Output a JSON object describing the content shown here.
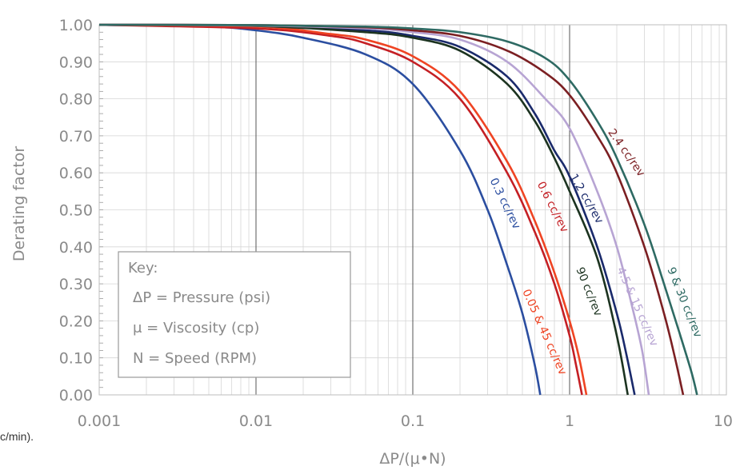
{
  "chart_data": {
    "type": "line",
    "x_scale": "log",
    "xlim": [
      0.001,
      10
    ],
    "ylim": [
      0,
      1.0
    ],
    "xlabel": "ΔP/(μ•N)",
    "ylabel": "Derating factor",
    "x_ticks": [
      "0.001",
      "0.01",
      "0.1",
      "1",
      "10"
    ],
    "y_ticks": [
      "0.00",
      "0.10",
      "0.20",
      "0.30",
      "0.40",
      "0.50",
      "0.60",
      "0.70",
      "0.80",
      "0.90",
      "1.00"
    ],
    "grid": true,
    "legend_box": {
      "title": "Key:",
      "lines": [
        "ΔP = Pressure (psi)",
        "μ = Viscosity (cp)",
        "N = Speed (RPM)"
      ],
      "placement": "bottom-left"
    },
    "left_fragment": "c/min).",
    "series": [
      {
        "name": "0.3 cc/rev",
        "color": "#2b4ea0",
        "x_zero": 0.65,
        "points": [
          [
            0.001,
            1.0
          ],
          [
            0.005,
            0.995
          ],
          [
            0.01,
            0.985
          ],
          [
            0.02,
            0.965
          ],
          [
            0.05,
            0.92
          ],
          [
            0.1,
            0.84
          ],
          [
            0.2,
            0.66
          ],
          [
            0.3,
            0.5
          ],
          [
            0.4,
            0.35
          ],
          [
            0.5,
            0.22
          ],
          [
            0.6,
            0.08
          ],
          [
            0.65,
            0.0
          ]
        ]
      },
      {
        "name": "0.6 cc/rev",
        "color": "#c41f24",
        "x_zero": 1.2,
        "points": [
          [
            0.001,
            1.0
          ],
          [
            0.01,
            0.99
          ],
          [
            0.03,
            0.97
          ],
          [
            0.05,
            0.95
          ],
          [
            0.1,
            0.9
          ],
          [
            0.2,
            0.8
          ],
          [
            0.4,
            0.6
          ],
          [
            0.6,
            0.44
          ],
          [
            0.8,
            0.3
          ],
          [
            1.0,
            0.16
          ],
          [
            1.1,
            0.08
          ],
          [
            1.2,
            0.0
          ]
        ]
      },
      {
        "name": "0.05 & 45 cc/rev",
        "color": "#ef4423",
        "x_zero": 1.28,
        "points": [
          [
            0.001,
            1.0
          ],
          [
            0.01,
            0.995
          ],
          [
            0.03,
            0.975
          ],
          [
            0.05,
            0.96
          ],
          [
            0.1,
            0.915
          ],
          [
            0.2,
            0.82
          ],
          [
            0.4,
            0.63
          ],
          [
            0.6,
            0.47
          ],
          [
            0.8,
            0.33
          ],
          [
            1.0,
            0.2
          ],
          [
            1.15,
            0.1
          ],
          [
            1.28,
            0.0
          ]
        ]
      },
      {
        "name": "1.2 cc/rev",
        "color": "#1a2a6b",
        "x_zero": 2.6,
        "points": [
          [
            0.001,
            1.0
          ],
          [
            0.01,
            0.998
          ],
          [
            0.05,
            0.985
          ],
          [
            0.1,
            0.97
          ],
          [
            0.2,
            0.94
          ],
          [
            0.4,
            0.86
          ],
          [
            0.6,
            0.76
          ],
          [
            0.8,
            0.66
          ],
          [
            1.0,
            0.59
          ],
          [
            1.5,
            0.4
          ],
          [
            2.0,
            0.22
          ],
          [
            2.3,
            0.11
          ],
          [
            2.6,
            0.0
          ]
        ]
      },
      {
        "name": "90 cc/rev",
        "color": "#1c3320",
        "x_zero": 2.35,
        "points": [
          [
            0.001,
            1.0
          ],
          [
            0.01,
            0.997
          ],
          [
            0.05,
            0.98
          ],
          [
            0.1,
            0.965
          ],
          [
            0.2,
            0.93
          ],
          [
            0.4,
            0.84
          ],
          [
            0.6,
            0.74
          ],
          [
            0.8,
            0.64
          ],
          [
            1.0,
            0.55
          ],
          [
            1.5,
            0.37
          ],
          [
            2.0,
            0.16
          ],
          [
            2.35,
            0.0
          ]
        ]
      },
      {
        "name": "4.5 & 15 cc/rev",
        "color": "#b7a4d3",
        "x_zero": 3.2,
        "points": [
          [
            0.001,
            1.0
          ],
          [
            0.01,
            0.998
          ],
          [
            0.05,
            0.99
          ],
          [
            0.1,
            0.98
          ],
          [
            0.2,
            0.96
          ],
          [
            0.4,
            0.9
          ],
          [
            0.7,
            0.8
          ],
          [
            1.0,
            0.72
          ],
          [
            1.5,
            0.55
          ],
          [
            2.0,
            0.4
          ],
          [
            2.5,
            0.24
          ],
          [
            2.9,
            0.12
          ],
          [
            3.2,
            0.0
          ]
        ]
      },
      {
        "name": "2.4 cc/rev",
        "color": "#7b1f22",
        "x_zero": 5.3,
        "points": [
          [
            0.001,
            1.0
          ],
          [
            0.01,
            0.999
          ],
          [
            0.05,
            0.993
          ],
          [
            0.1,
            0.985
          ],
          [
            0.2,
            0.97
          ],
          [
            0.4,
            0.93
          ],
          [
            0.7,
            0.87
          ],
          [
            1.0,
            0.81
          ],
          [
            1.5,
            0.7
          ],
          [
            2.0,
            0.6
          ],
          [
            3.0,
            0.4
          ],
          [
            4.0,
            0.22
          ],
          [
            4.7,
            0.1
          ],
          [
            5.3,
            0.0
          ]
        ]
      },
      {
        "name": "9 & 30 cc/rev",
        "color": "#2e6a63",
        "x_zero": 6.5,
        "points": [
          [
            0.001,
            1.0
          ],
          [
            0.01,
            0.999
          ],
          [
            0.05,
            0.995
          ],
          [
            0.1,
            0.99
          ],
          [
            0.2,
            0.98
          ],
          [
            0.4,
            0.955
          ],
          [
            0.7,
            0.91
          ],
          [
            1.0,
            0.85
          ],
          [
            1.5,
            0.74
          ],
          [
            2.0,
            0.64
          ],
          [
            3.0,
            0.46
          ],
          [
            4.0,
            0.3
          ],
          [
            5.0,
            0.17
          ],
          [
            6.0,
            0.06
          ],
          [
            6.5,
            0.0
          ]
        ]
      }
    ]
  }
}
